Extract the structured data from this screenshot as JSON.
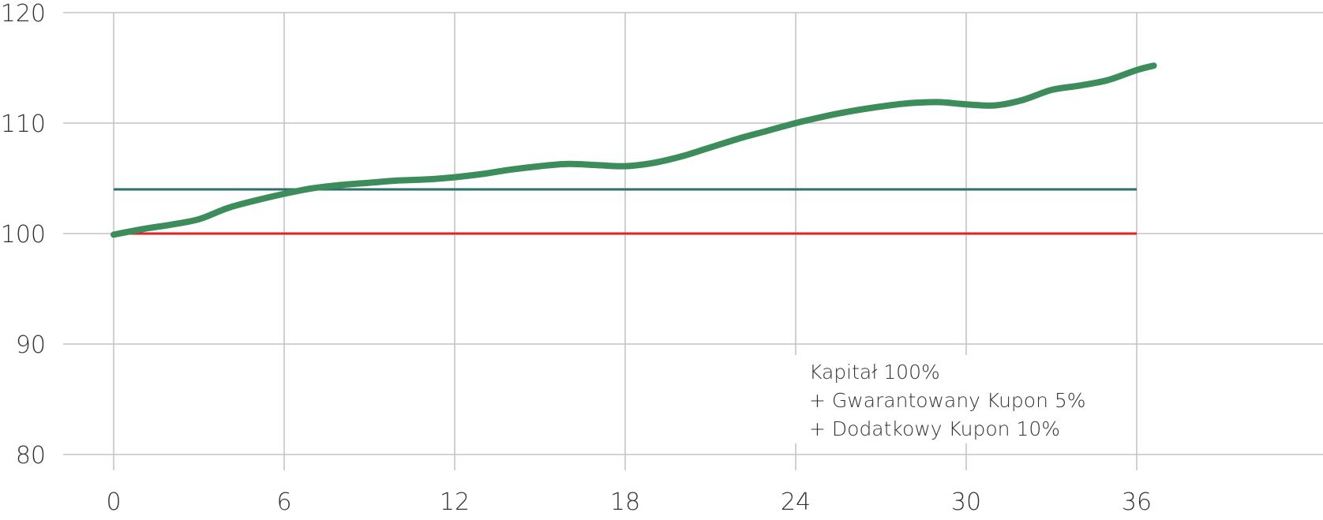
{
  "chart_data": {
    "type": "line",
    "x_ticks": [
      "0",
      "6",
      "12",
      "18",
      "24",
      "30",
      "36"
    ],
    "y_ticks": [
      "80",
      "90",
      "100",
      "110",
      "120"
    ],
    "xlim": [
      -1.8,
      42.5
    ],
    "ylim": [
      80,
      120
    ],
    "grid": true,
    "legend": "none",
    "annotation": [
      "Kapitał 100%",
      "+ Gwarantowany Kupon 5%",
      "+ Dodatkowy Kupon 10%"
    ],
    "series": [
      {
        "color": "#3d8c5c",
        "x": [
          0,
          1,
          2,
          3,
          4,
          5,
          6,
          7,
          8,
          9,
          10,
          11,
          12,
          13,
          14,
          15,
          16,
          17,
          18,
          19,
          20,
          21,
          22,
          23,
          24,
          25,
          26,
          27,
          28,
          29,
          30,
          31,
          32,
          33,
          34,
          35,
          36,
          36.6
        ],
        "values": [
          99.9,
          100.4,
          100.8,
          101.3,
          102.3,
          103.0,
          103.6,
          104.1,
          104.4,
          104.6,
          104.8,
          104.9,
          105.1,
          105.4,
          105.8,
          106.1,
          106.3,
          106.2,
          106.1,
          106.4,
          107.0,
          107.8,
          108.6,
          109.3,
          110.0,
          110.6,
          111.1,
          111.5,
          111.8,
          111.9,
          111.7,
          111.6,
          112.1,
          113.0,
          113.4,
          113.9,
          114.8,
          115.2
        ]
      },
      {
        "color": "#2d6e6e",
        "x": [
          0,
          36
        ],
        "values": [
          104,
          104
        ]
      },
      {
        "color": "#dd2222",
        "x": [
          0,
          36
        ],
        "values": [
          100,
          100
        ]
      }
    ]
  }
}
